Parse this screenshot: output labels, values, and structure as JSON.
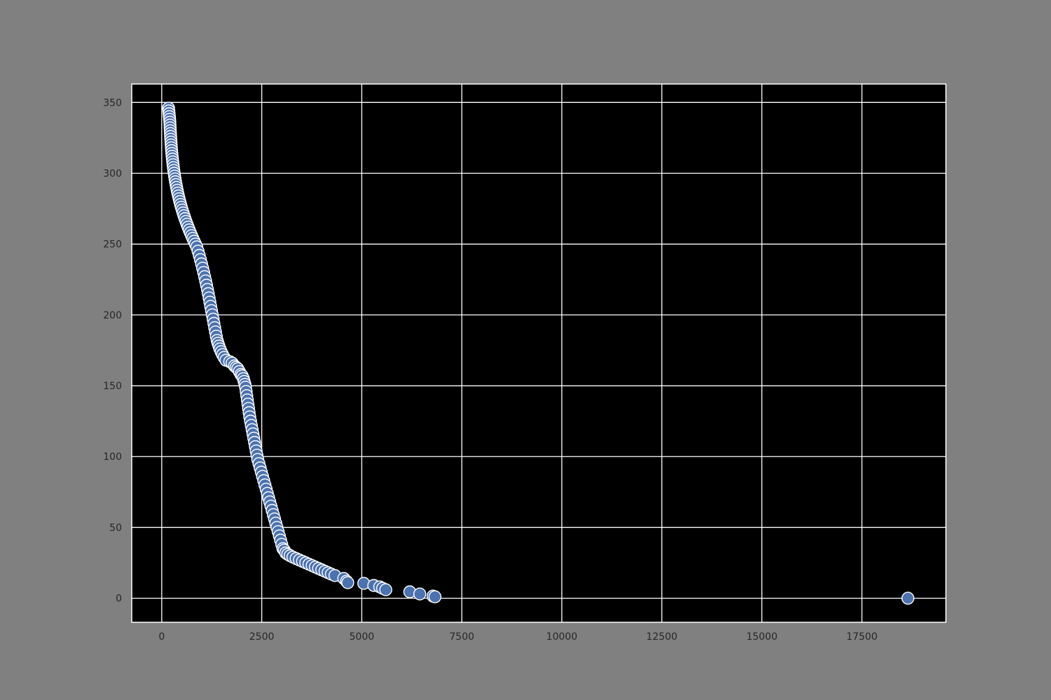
{
  "colors": {
    "figure_background": "#808080",
    "plot_background": "#000000",
    "grid": "#ffffff",
    "marker_fill": "#4c72b0",
    "marker_edge": "#ffffff",
    "tick_text": "#262626"
  },
  "chart_data": {
    "type": "scatter",
    "title": "",
    "xlabel": "",
    "ylabel": "",
    "xlim": [
      -750,
      19600
    ],
    "ylim": [
      -17,
      363
    ],
    "xticks": [
      0,
      2500,
      5000,
      7500,
      10000,
      12500,
      15000,
      17500
    ],
    "xtick_labels": [
      "0",
      "2500",
      "5000",
      "7500",
      "10000",
      "12500",
      "15000",
      "17500"
    ],
    "yticks": [
      0,
      50,
      100,
      150,
      200,
      250,
      300,
      350
    ],
    "ytick_labels": [
      "0",
      "50",
      "100",
      "150",
      "200",
      "250",
      "300",
      "350"
    ],
    "grid": true,
    "legend": "none",
    "series": [
      {
        "points": [
          [
            170,
            346
          ],
          [
            178,
            344
          ],
          [
            185,
            342
          ],
          [
            192,
            340
          ],
          [
            198,
            338
          ],
          [
            203,
            336
          ],
          [
            207,
            334
          ],
          [
            210,
            332
          ],
          [
            214,
            330
          ],
          [
            218,
            328
          ],
          [
            222,
            326
          ],
          [
            226,
            324
          ],
          [
            231,
            322
          ],
          [
            236,
            320
          ],
          [
            241,
            318
          ],
          [
            247,
            316
          ],
          [
            253,
            314
          ],
          [
            260,
            312
          ],
          [
            267,
            310
          ],
          [
            275,
            308
          ],
          [
            283,
            306
          ],
          [
            292,
            304
          ],
          [
            301,
            302
          ],
          [
            311,
            300
          ],
          [
            322,
            298
          ],
          [
            333,
            296
          ],
          [
            345,
            294
          ],
          [
            358,
            292
          ],
          [
            372,
            290
          ],
          [
            386,
            288
          ],
          [
            401,
            286
          ],
          [
            417,
            284
          ],
          [
            434,
            282
          ],
          [
            452,
            280
          ],
          [
            471,
            278
          ],
          [
            491,
            276
          ],
          [
            512,
            274
          ],
          [
            534,
            272
          ],
          [
            557,
            270
          ],
          [
            581,
            268
          ],
          [
            606,
            266
          ],
          [
            632,
            264
          ],
          [
            659,
            262
          ],
          [
            687,
            260
          ],
          [
            716,
            258
          ],
          [
            746,
            256
          ],
          [
            777,
            254
          ],
          [
            809,
            252
          ],
          [
            842,
            250
          ],
          [
            876,
            248
          ],
          [
            908,
            245
          ],
          [
            938,
            242
          ],
          [
            967,
            239
          ],
          [
            995,
            236
          ],
          [
            1022,
            233
          ],
          [
            1048,
            230
          ],
          [
            1073,
            227
          ],
          [
            1097,
            224
          ],
          [
            1120,
            221
          ],
          [
            1142,
            218
          ],
          [
            1163,
            215
          ],
          [
            1184,
            212
          ],
          [
            1204,
            209
          ],
          [
            1224,
            206
          ],
          [
            1244,
            203
          ],
          [
            1264,
            200
          ],
          [
            1284,
            197
          ],
          [
            1304,
            194
          ],
          [
            1324,
            191
          ],
          [
            1344,
            188
          ],
          [
            1364,
            185
          ],
          [
            1385,
            182
          ],
          [
            1407,
            180
          ],
          [
            1430,
            178
          ],
          [
            1455,
            176
          ],
          [
            1485,
            174
          ],
          [
            1520,
            172
          ],
          [
            1560,
            170
          ],
          [
            1605,
            168
          ],
          [
            1700,
            167
          ],
          [
            1760,
            166
          ],
          [
            1820,
            164
          ],
          [
            1860,
            163
          ],
          [
            1900,
            162
          ],
          [
            1940,
            160
          ],
          [
            1980,
            158
          ],
          [
            2010,
            157
          ],
          [
            2040,
            155
          ],
          [
            2060,
            153
          ],
          [
            2080,
            151
          ],
          [
            2095,
            149
          ],
          [
            2110,
            146
          ],
          [
            2125,
            143
          ],
          [
            2140,
            140
          ],
          [
            2155,
            137
          ],
          [
            2170,
            134
          ],
          [
            2185,
            131
          ],
          [
            2200,
            128
          ],
          [
            2220,
            125
          ],
          [
            2240,
            122
          ],
          [
            2260,
            119
          ],
          [
            2280,
            116
          ],
          [
            2300,
            113
          ],
          [
            2320,
            110
          ],
          [
            2340,
            107
          ],
          [
            2360,
            104
          ],
          [
            2380,
            101
          ],
          [
            2400,
            98
          ],
          [
            2430,
            95
          ],
          [
            2460,
            92
          ],
          [
            2490,
            89
          ],
          [
            2520,
            86
          ],
          [
            2550,
            83
          ],
          [
            2580,
            80
          ],
          [
            2610,
            77
          ],
          [
            2640,
            74
          ],
          [
            2670,
            71
          ],
          [
            2700,
            68
          ],
          [
            2730,
            65
          ],
          [
            2760,
            62
          ],
          [
            2790,
            59
          ],
          [
            2820,
            56
          ],
          [
            2850,
            53
          ],
          [
            2880,
            50
          ],
          [
            2910,
            47
          ],
          [
            2940,
            44
          ],
          [
            2970,
            41
          ],
          [
            3000,
            38
          ],
          [
            3030,
            35
          ],
          [
            3060,
            34
          ],
          [
            3100,
            32
          ],
          [
            3150,
            31
          ],
          [
            3210,
            30
          ],
          [
            3280,
            29
          ],
          [
            3360,
            28
          ],
          [
            3440,
            27
          ],
          [
            3520,
            26
          ],
          [
            3600,
            25
          ],
          [
            3680,
            24
          ],
          [
            3760,
            23
          ],
          [
            3840,
            22
          ],
          [
            3920,
            21
          ],
          [
            4000,
            20
          ],
          [
            4080,
            19
          ],
          [
            4160,
            18
          ],
          [
            4240,
            17
          ],
          [
            4330,
            16
          ],
          [
            4550,
            14
          ],
          [
            4620,
            12
          ],
          [
            4650,
            11
          ],
          [
            5050,
            10.5
          ],
          [
            5300,
            9
          ],
          [
            5450,
            8
          ],
          [
            5520,
            7
          ],
          [
            5600,
            6
          ],
          [
            6200,
            4.5
          ],
          [
            6450,
            3
          ],
          [
            6780,
            1.5
          ],
          [
            6830,
            1
          ],
          [
            18650,
            0
          ]
        ]
      }
    ]
  }
}
